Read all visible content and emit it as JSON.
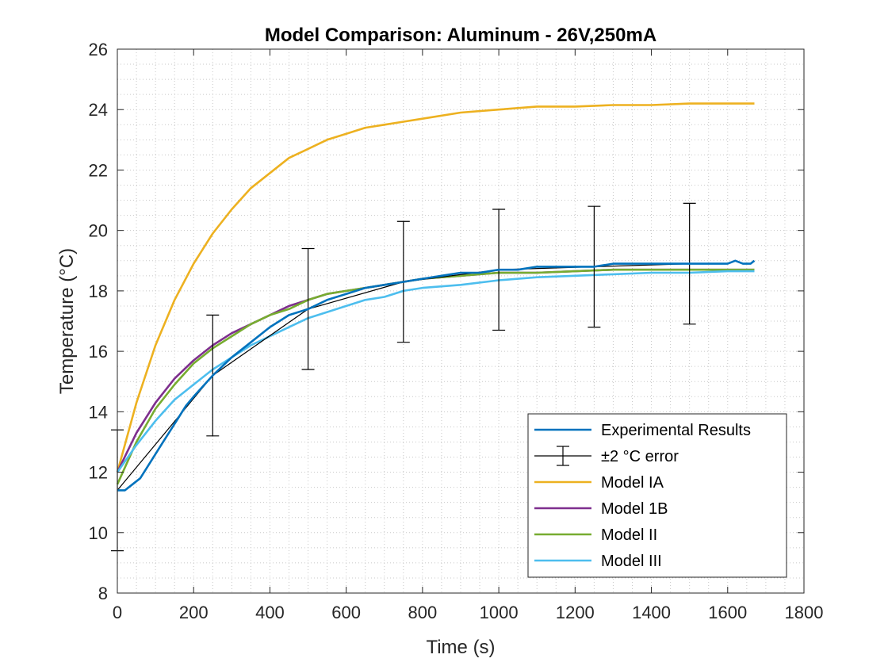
{
  "chart_data": {
    "type": "line",
    "title": "Model Comparison: Aluminum - 26V,250mA",
    "xlabel": "Time (s)",
    "ylabel": "Temperature (°C)",
    "xlim": [
      0,
      1800
    ],
    "ylim": [
      8,
      26
    ],
    "x_ticks": [
      0,
      200,
      400,
      600,
      800,
      1000,
      1200,
      1400,
      1600,
      1800
    ],
    "y_ticks": [
      8,
      10,
      12,
      14,
      16,
      18,
      20,
      22,
      24,
      26
    ],
    "x_tick_labels": [
      "0",
      "200",
      "400",
      "600",
      "800",
      "1000",
      "1200",
      "1400",
      "1600",
      "1800"
    ],
    "y_tick_labels": [
      "8",
      "10",
      "12",
      "14",
      "16",
      "18",
      "20",
      "22",
      "24",
      "26"
    ],
    "grid": "minor dotted",
    "legend_position": "bottom-right",
    "series": [
      {
        "name": "Experimental Results",
        "color": "#0072BD",
        "x": [
          0,
          20,
          40,
          60,
          80,
          100,
          120,
          140,
          160,
          180,
          200,
          250,
          300,
          350,
          400,
          450,
          500,
          550,
          600,
          650,
          700,
          750,
          800,
          850,
          900,
          950,
          1000,
          1050,
          1100,
          1150,
          1200,
          1250,
          1300,
          1350,
          1400,
          1450,
          1500,
          1550,
          1600,
          1620,
          1640,
          1660,
          1670
        ],
        "y": [
          11.4,
          11.4,
          11.6,
          11.8,
          12.2,
          12.6,
          13.0,
          13.4,
          13.8,
          14.2,
          14.5,
          15.2,
          15.8,
          16.3,
          16.8,
          17.2,
          17.4,
          17.7,
          17.9,
          18.1,
          18.2,
          18.3,
          18.4,
          18.5,
          18.6,
          18.6,
          18.7,
          18.7,
          18.8,
          18.8,
          18.8,
          18.8,
          18.9,
          18.9,
          18.9,
          18.9,
          18.9,
          18.9,
          18.9,
          19.0,
          18.9,
          18.9,
          19.0
        ]
      },
      {
        "name": "±2 °C error",
        "color": "#000000",
        "x": [
          0,
          250,
          500,
          750,
          1000,
          1250,
          1500
        ],
        "y": [
          11.4,
          15.2,
          17.4,
          18.3,
          18.7,
          18.8,
          18.9
        ],
        "error": 2
      },
      {
        "name": "Model IA",
        "color": "#EDB120",
        "x": [
          0,
          50,
          100,
          150,
          200,
          250,
          300,
          350,
          400,
          450,
          500,
          550,
          600,
          650,
          700,
          750,
          800,
          900,
          1000,
          1100,
          1200,
          1300,
          1400,
          1500,
          1600,
          1670
        ],
        "y": [
          12.0,
          14.3,
          16.2,
          17.7,
          18.9,
          19.9,
          20.7,
          21.4,
          21.9,
          22.4,
          22.7,
          23.0,
          23.2,
          23.4,
          23.5,
          23.6,
          23.7,
          23.9,
          24.0,
          24.1,
          24.1,
          24.15,
          24.15,
          24.2,
          24.2,
          24.2
        ]
      },
      {
        "name": "Model 1B",
        "color": "#7E2F8E",
        "x": [
          0,
          50,
          100,
          150,
          200,
          250,
          300,
          350,
          400,
          450,
          500,
          550,
          600,
          650,
          700,
          750,
          800,
          900,
          1000,
          1100,
          1200,
          1300,
          1400,
          1500,
          1600,
          1670
        ],
        "y": [
          12.0,
          13.3,
          14.3,
          15.1,
          15.7,
          16.2,
          16.6,
          16.9,
          17.2,
          17.5,
          17.7,
          17.9,
          18.0,
          18.1,
          18.2,
          18.3,
          18.4,
          18.5,
          18.6,
          18.6,
          18.65,
          18.7,
          18.7,
          18.7,
          18.7,
          18.7
        ]
      },
      {
        "name": "Model II",
        "color": "#77AC30",
        "x": [
          0,
          50,
          100,
          150,
          200,
          250,
          300,
          350,
          400,
          450,
          500,
          550,
          600,
          650,
          700,
          750,
          800,
          900,
          1000,
          1100,
          1200,
          1300,
          1400,
          1500,
          1600,
          1670
        ],
        "y": [
          11.6,
          13.0,
          14.1,
          14.9,
          15.6,
          16.1,
          16.5,
          16.9,
          17.2,
          17.4,
          17.7,
          17.9,
          18.0,
          18.1,
          18.2,
          18.3,
          18.4,
          18.5,
          18.6,
          18.6,
          18.65,
          18.7,
          18.7,
          18.7,
          18.7,
          18.7
        ]
      },
      {
        "name": "Model III",
        "color": "#4DBEEE",
        "x": [
          0,
          50,
          100,
          150,
          200,
          250,
          300,
          350,
          400,
          450,
          500,
          550,
          600,
          650,
          700,
          750,
          800,
          900,
          1000,
          1100,
          1200,
          1300,
          1400,
          1500,
          1600,
          1670
        ],
        "y": [
          12.0,
          12.9,
          13.7,
          14.4,
          14.9,
          15.4,
          15.8,
          16.2,
          16.5,
          16.8,
          17.1,
          17.3,
          17.5,
          17.7,
          17.8,
          18.0,
          18.1,
          18.2,
          18.35,
          18.45,
          18.5,
          18.55,
          18.6,
          18.6,
          18.65,
          18.65
        ]
      }
    ]
  }
}
